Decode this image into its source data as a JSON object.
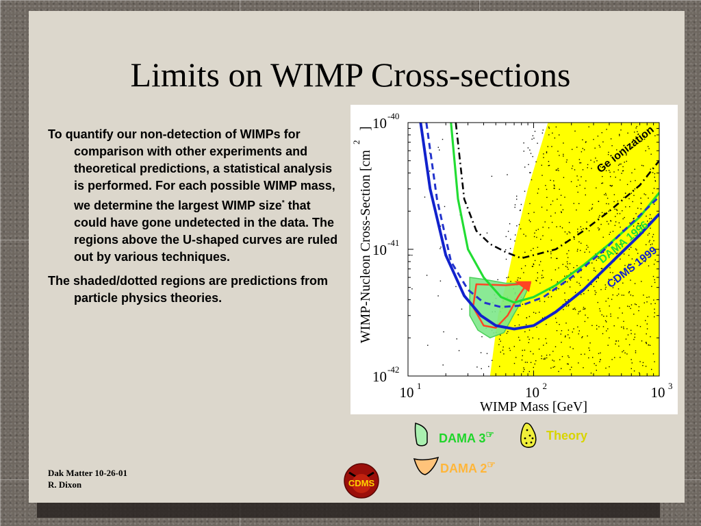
{
  "slide": {
    "title": "Limits on WIMP Cross-sections",
    "paragraphs": [
      {
        "before": "To quantify our non-detection of WIMPs for comparison with other experiments and theoretical predictions, a statistical analysis is performed. For each possible WIMP mass, we determine the largest WIMP size",
        "sup": "*",
        "after": " that could have gone undetected in the data. The regions above the U-shaped curves are ruled out by various techniques."
      },
      {
        "before": "The shaded/dotted regions are predictions from particle physics theories.",
        "sup": "",
        "after": ""
      }
    ],
    "footer_line1": "Dak Matter 10-26-01",
    "footer_line2": "R. Dixon",
    "logo_text": "CDMS"
  },
  "legend": {
    "dama3": {
      "label": "DAMA 3",
      "symbol": "☞",
      "color": "#1fd52a"
    },
    "theory": {
      "label": "Theory",
      "color": "#d8d400"
    },
    "dama2": {
      "label": "DAMA 2",
      "symbol": "☞",
      "color": "#ffb63a"
    }
  },
  "chart_data": {
    "type": "line",
    "xlabel": "WIMP Mass [GeV]",
    "ylabel": "WIMP-Nucleon Cross-Section [cm",
    "ylabel_sup": "2",
    "x_scale": "log",
    "y_scale": "log",
    "xlim": [
      10,
      1000
    ],
    "ylim": [
      1e-42,
      1e-40
    ],
    "x_ticks": [
      {
        "base": "10",
        "exp": "1"
      },
      {
        "base": "10",
        "exp": "2"
      },
      {
        "base": "10",
        "exp": "3"
      }
    ],
    "y_ticks": [
      {
        "base": "10",
        "exp": "-40"
      },
      {
        "base": "10",
        "exp": "-41"
      },
      {
        "base": "10",
        "exp": "-42"
      }
    ],
    "series": [
      {
        "name": "Ge ionization",
        "color": "#000000",
        "style": "dashdot",
        "points": [
          [
            24,
            1e-40
          ],
          [
            28,
            2.5e-41
          ],
          [
            35,
            1.4e-41
          ],
          [
            45,
            1.1e-41
          ],
          [
            60,
            9.5e-42
          ],
          [
            80,
            8.5e-42
          ],
          [
            100,
            9e-42
          ],
          [
            150,
            1e-41
          ],
          [
            250,
            1.4e-41
          ],
          [
            400,
            2e-41
          ],
          [
            700,
            3.2e-41
          ],
          [
            1000,
            5e-41
          ]
        ]
      },
      {
        "name": "DAMA 1996",
        "color": "#22dd33",
        "style": "solid",
        "points": [
          [
            22,
            1e-40
          ],
          [
            25,
            2.5e-41
          ],
          [
            30,
            1e-41
          ],
          [
            40,
            6e-42
          ],
          [
            55,
            4.2e-42
          ],
          [
            70,
            3.8e-42
          ],
          [
            100,
            4.2e-42
          ],
          [
            150,
            5.2e-42
          ],
          [
            250,
            7.5e-42
          ],
          [
            400,
            1.1e-41
          ],
          [
            700,
            1.8e-41
          ],
          [
            1000,
            2.8e-41
          ]
        ]
      },
      {
        "name": "",
        "color": "#2233cc",
        "style": "dashed",
        "points": [
          [
            14,
            1e-40
          ],
          [
            17,
            2.5e-41
          ],
          [
            22,
            8e-42
          ],
          [
            30,
            4.8e-42
          ],
          [
            40,
            3.8e-42
          ],
          [
            55,
            3.5e-42
          ],
          [
            80,
            3.6e-42
          ],
          [
            120,
            4.2e-42
          ],
          [
            200,
            6e-42
          ],
          [
            350,
            9.5e-42
          ],
          [
            600,
            1.6e-41
          ],
          [
            1000,
            2.6e-41
          ]
        ]
      },
      {
        "name": "CDMS 1999",
        "color": "#1122cc",
        "style": "solid",
        "points": [
          [
            12.6,
            1e-40
          ],
          [
            15,
            3e-41
          ],
          [
            20,
            9e-42
          ],
          [
            28,
            4.3e-42
          ],
          [
            38,
            3e-42
          ],
          [
            50,
            2.5e-42
          ],
          [
            70,
            2.35e-42
          ],
          [
            100,
            2.5e-42
          ],
          [
            150,
            3.2e-42
          ],
          [
            250,
            4.8e-42
          ],
          [
            450,
            8.5e-42
          ],
          [
            700,
            1.3e-41
          ],
          [
            1000,
            1.9e-41
          ]
        ]
      }
    ],
    "regions": [
      {
        "name": "DAMA 3",
        "color": "#7de88a",
        "points": [
          [
            31,
            6e-42
          ],
          [
            31,
            3e-42
          ],
          [
            36,
            2.3e-42
          ],
          [
            45,
            2e-42
          ],
          [
            58,
            2.2e-42
          ],
          [
            70,
            3.1e-42
          ],
          [
            84,
            4.2e-42
          ],
          [
            94,
            5.4e-42
          ],
          [
            60,
            5.4e-42
          ],
          [
            40,
            5.8e-42
          ]
        ]
      },
      {
        "name": "DAMA 2",
        "color": "#ff4422",
        "points": [
          [
            35,
            5.3e-42
          ],
          [
            33,
            3.5e-42
          ],
          [
            40,
            2.5e-42
          ],
          [
            50,
            2.4e-42
          ],
          [
            62,
            3e-42
          ],
          [
            75,
            4.2e-42
          ],
          [
            88,
            5.3e-42
          ],
          [
            94,
            5.4e-42
          ],
          [
            60,
            5.2e-42
          ]
        ]
      },
      {
        "name": "Theory",
        "color": "#ffff00",
        "points": [
          [
            45,
            1e-42
          ],
          [
            1000,
            1e-42
          ],
          [
            1000,
            1e-40
          ],
          [
            130,
            1e-40
          ],
          [
            90,
            3e-41
          ],
          [
            72,
            1.2e-41
          ],
          [
            62,
            6e-42
          ],
          [
            52,
            3e-42
          ]
        ]
      }
    ]
  }
}
